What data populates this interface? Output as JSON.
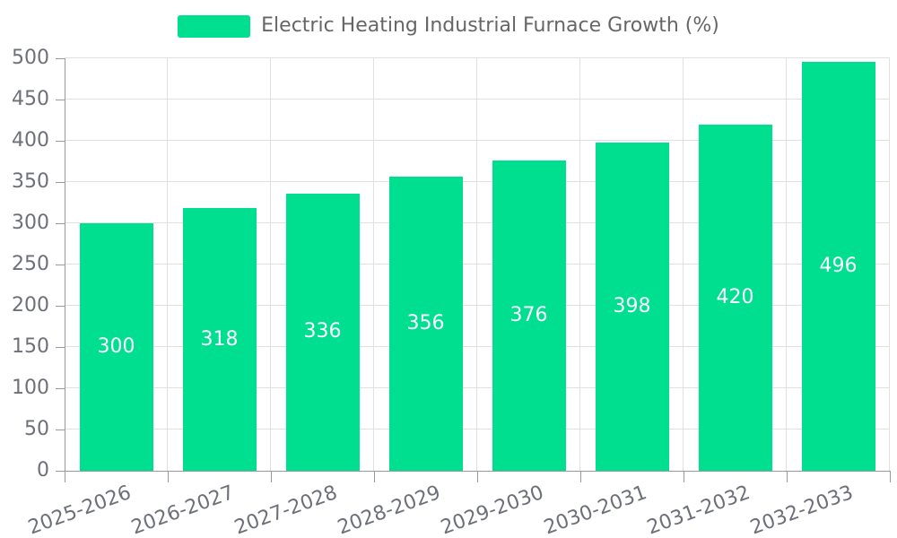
{
  "legend": {
    "label": "Electric Heating Industrial Furnace Growth (%)"
  },
  "chart_data": {
    "type": "bar",
    "title": "Electric Heating Industrial Furnace Growth (%)",
    "categories": [
      "2025-2026",
      "2026-2027",
      "2027-2028",
      "2028-2029",
      "2029-2030",
      "2030-2031",
      "2031-2032",
      "2032-2033"
    ],
    "values": [
      300,
      318,
      336,
      356,
      376,
      398,
      420,
      496
    ],
    "xlabel": "",
    "ylabel": "",
    "ylim": [
      0,
      500
    ],
    "ytick_interval": 50,
    "yticks": [
      "0",
      "50",
      "100",
      "150",
      "200",
      "250",
      "300",
      "350",
      "400",
      "450",
      "500"
    ],
    "grid": true,
    "legend_position": "top-center",
    "x_label_rotation_deg": -20,
    "bar_label_position": "inside-center",
    "colors": {
      "bar": "#00de90",
      "bar_label": "#ffffff",
      "axis_label": "#6e7079",
      "legend_text": "#666666",
      "grid_line": "#e0e0e0",
      "axis_line": "#999999",
      "background": "#ffffff"
    }
  }
}
